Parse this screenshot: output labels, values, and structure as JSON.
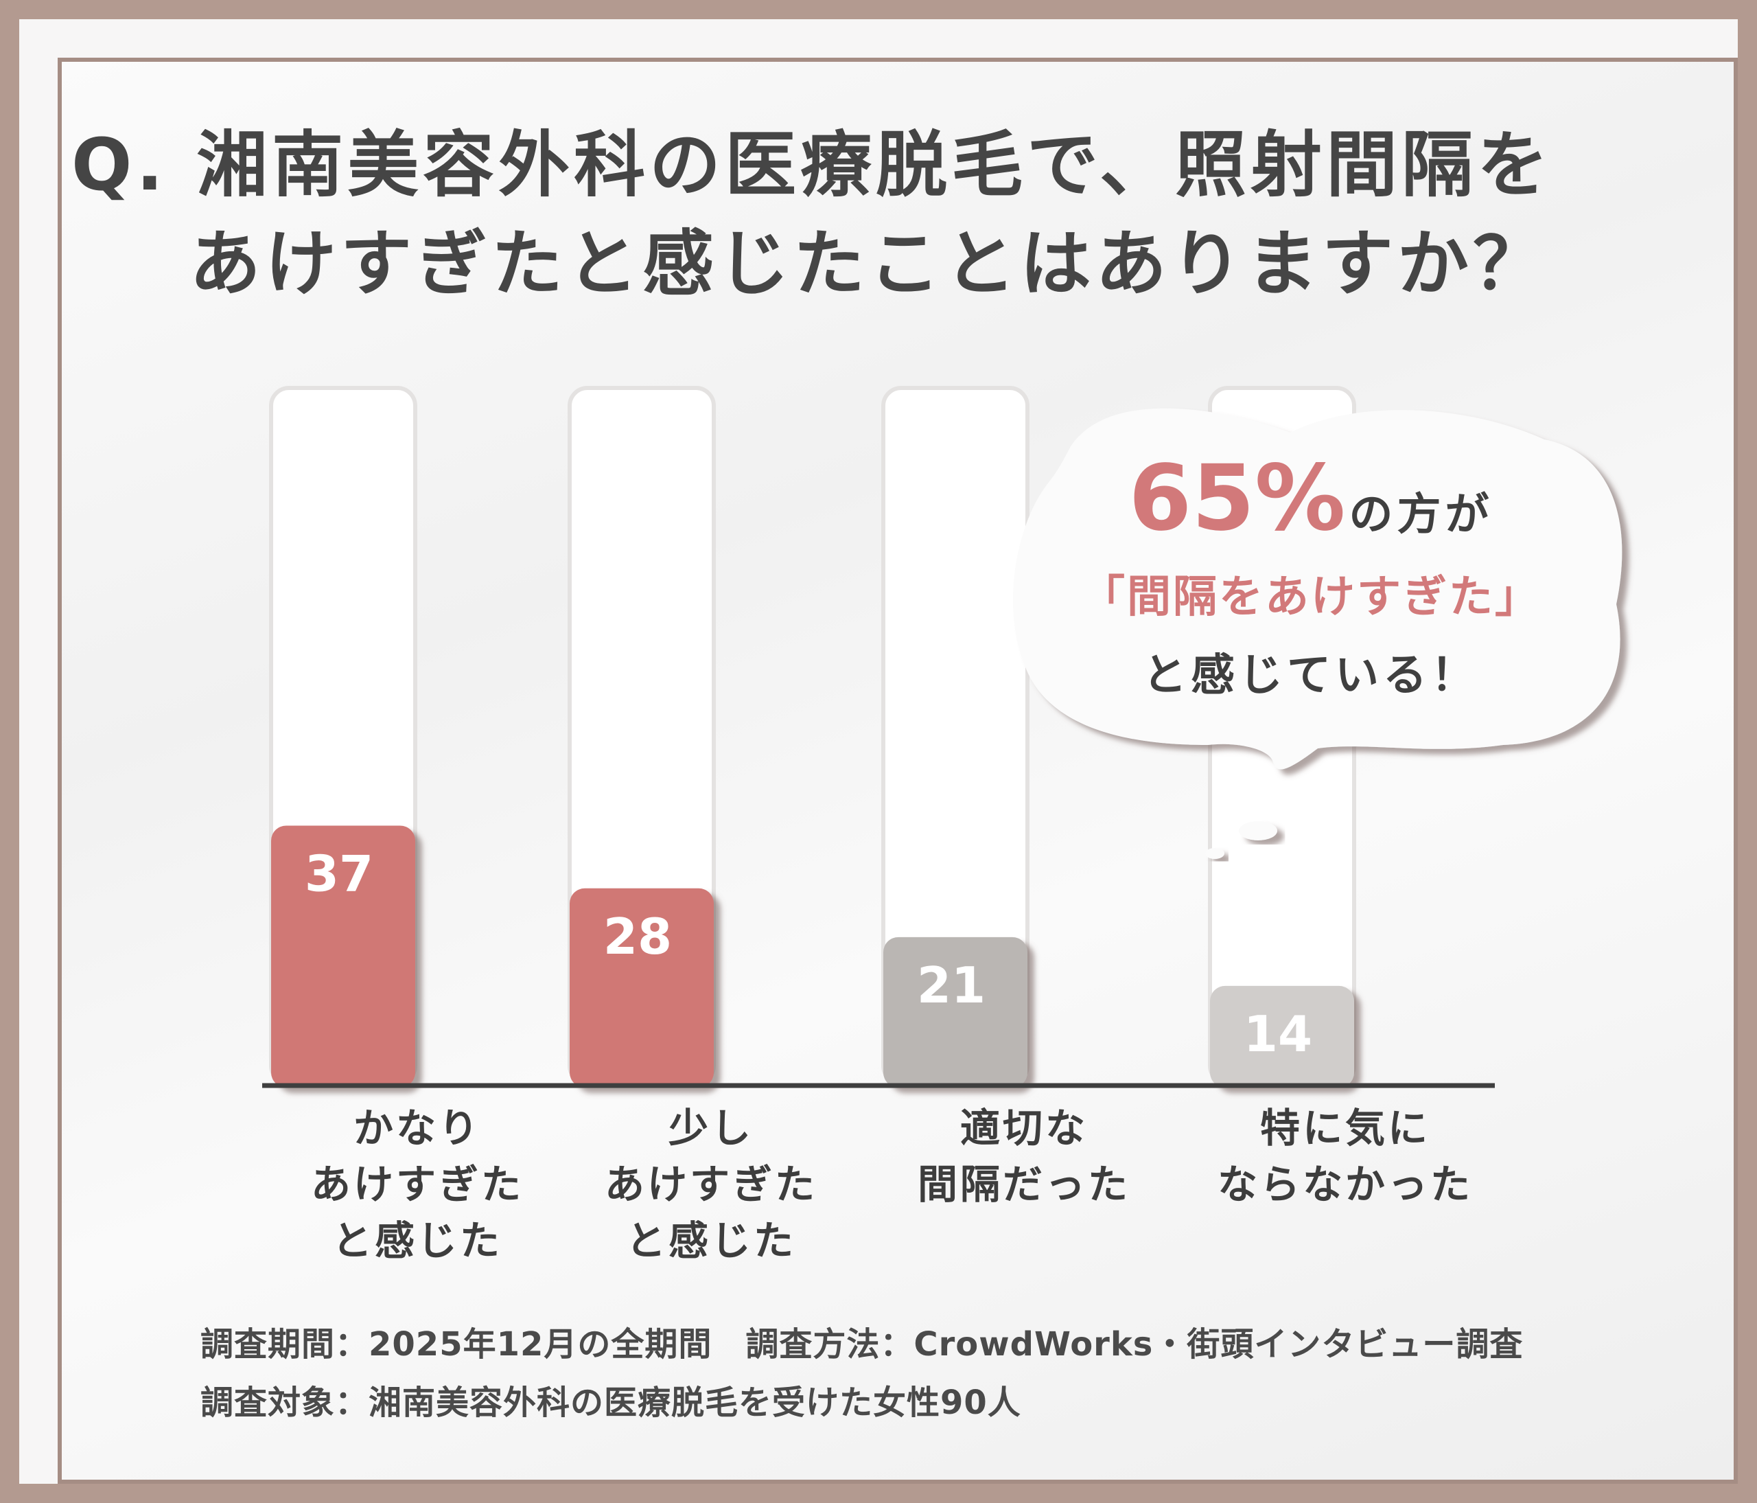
{
  "title": {
    "line1": "Q. 湘南美容外科の医療脱毛で、照射間隔を",
    "line2": "あけすぎたと感じたことはありますか？"
  },
  "chart_data": {
    "type": "bar",
    "categories": [
      "かなり\nあけすぎた\nと感じた",
      "少し\nあけすぎた\nと感じた",
      "適切な\n間隔だった",
      "特に気に\nならなかった"
    ],
    "values": [
      37,
      28,
      21,
      14
    ],
    "value_labels": [
      "37",
      "28",
      "21",
      "14"
    ],
    "bar_colors": [
      "#d07874",
      "#d07874",
      "#bab6b3",
      "#d0cdcb"
    ],
    "ylim": [
      0,
      100
    ]
  },
  "callout": {
    "percent": "65%",
    "line1_rest": "の方が",
    "line2": "「間隔をあけすぎた」",
    "line3": "と感じている！"
  },
  "footnote": {
    "line1": "調査期間：2025年12月の全期間　調査方法：CrowdWorks・街頭インタビュー調査",
    "line2": "調査対象：湘南美容外科の医療脱毛を受けた女性90人"
  },
  "colors": {
    "accent": "#d07874",
    "frame": "#a58d84",
    "text": "#454545"
  }
}
